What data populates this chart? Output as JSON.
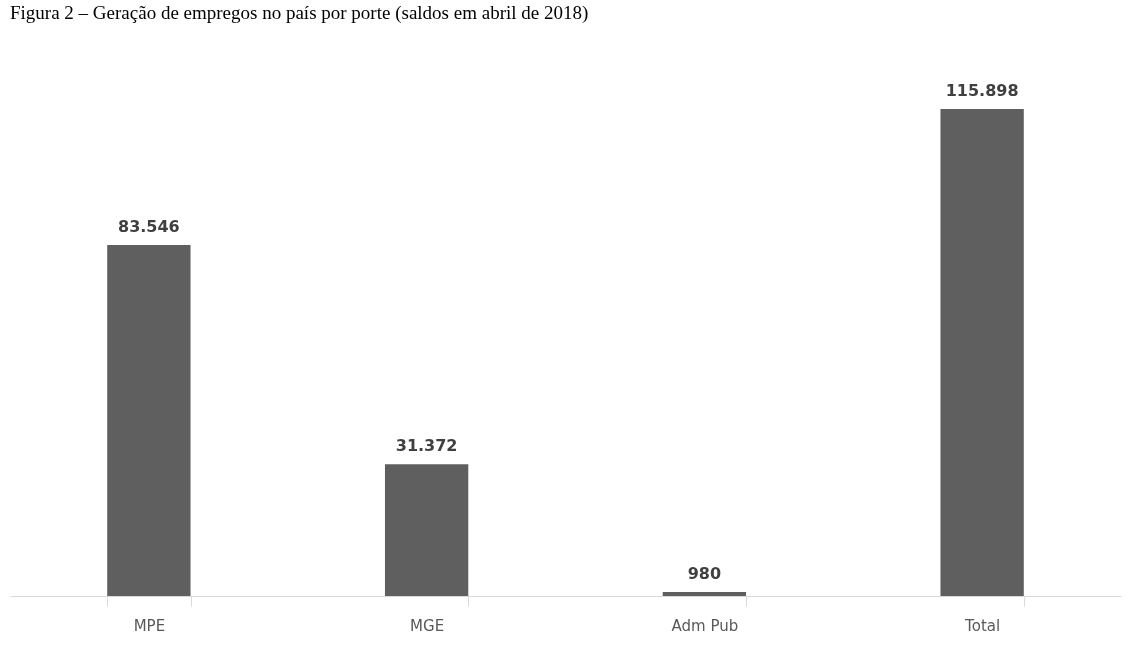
{
  "chart_data": {
    "type": "bar",
    "title": "Figura 2 – Geração de empregos no país por porte (saldos em abril de 2018)",
    "categories": [
      "MPE",
      "MGE",
      "Adm Pub",
      "Total"
    ],
    "values": [
      83546,
      31372,
      980,
      115898
    ],
    "value_labels": [
      "83.546",
      "31.372",
      "980",
      "115.898"
    ],
    "color": "#5f5f5f",
    "grid": false
  }
}
